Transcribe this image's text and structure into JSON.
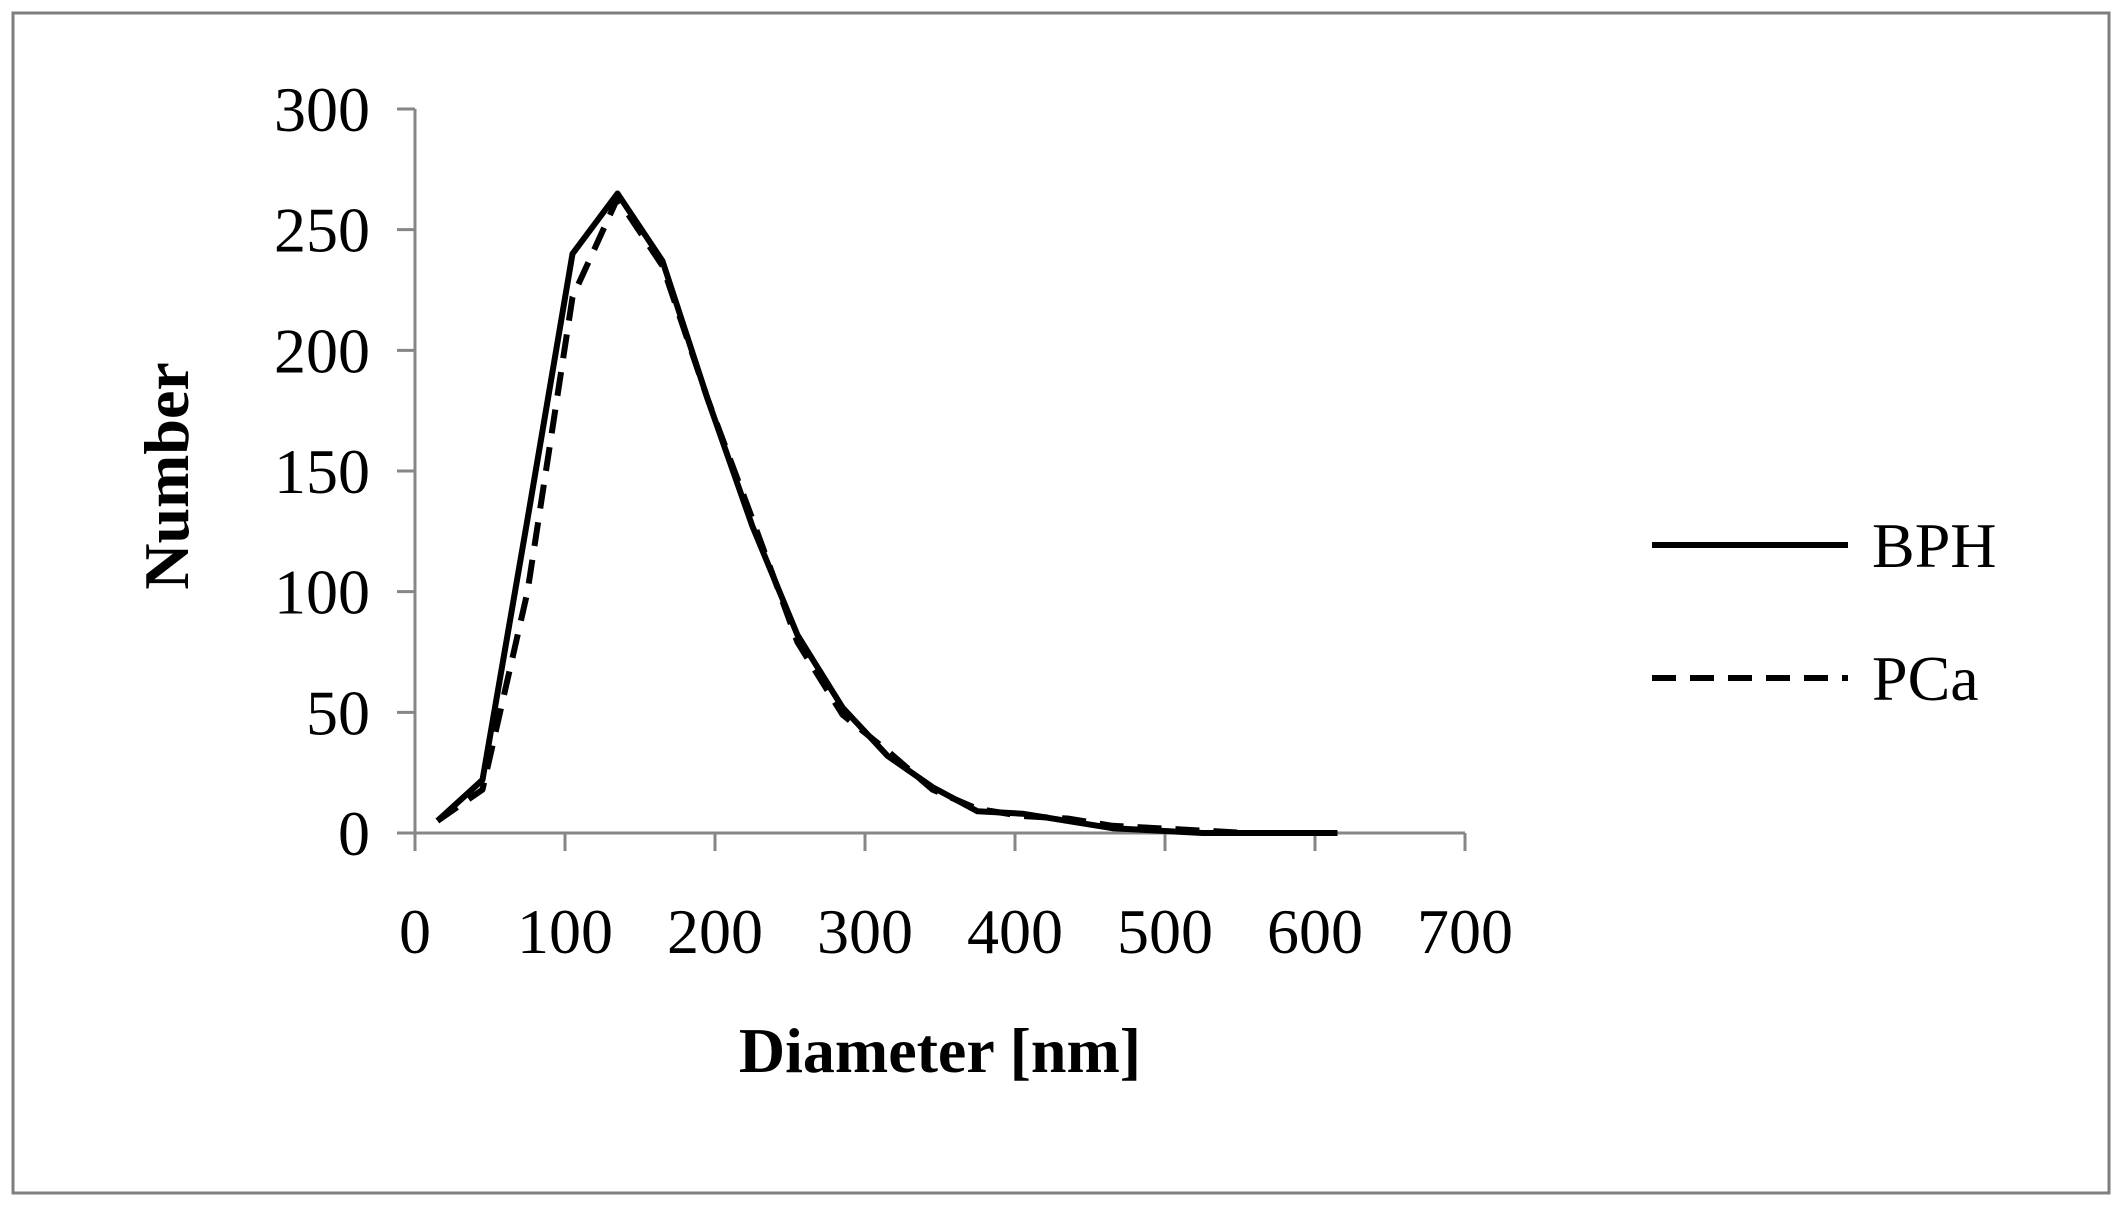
{
  "chart_data": {
    "type": "line",
    "title": "",
    "xlabel": "Diameter [nm]",
    "ylabel": "Number",
    "xlim": [
      0,
      700
    ],
    "ylim": [
      0,
      300
    ],
    "xticks": [
      0,
      100,
      200,
      300,
      400,
      500,
      600,
      700
    ],
    "yticks": [
      0,
      50,
      100,
      150,
      200,
      250,
      300
    ],
    "grid": false,
    "legend_position": "right",
    "series": [
      {
        "name": "BPH",
        "style": "solid",
        "color": "#000000",
        "x": [
          15,
          45,
          75,
          105,
          135,
          165,
          195,
          225,
          255,
          285,
          315,
          345,
          375,
          405,
          435,
          465,
          495,
          525,
          555,
          585,
          615
        ],
        "y": [
          5,
          22,
          130,
          240,
          265,
          237,
          180,
          127,
          82,
          52,
          32,
          19,
          9,
          8,
          5,
          2,
          1,
          0,
          0,
          0,
          0
        ]
      },
      {
        "name": "PCa",
        "style": "dashed",
        "color": "#000000",
        "x": [
          15,
          45,
          75,
          105,
          135,
          165,
          195,
          225,
          255,
          285,
          315,
          345,
          375,
          405,
          435,
          465,
          495,
          525,
          555,
          585,
          615
        ],
        "y": [
          5,
          18,
          100,
          222,
          263,
          235,
          180,
          130,
          79,
          49,
          34,
          18,
          10,
          7,
          6,
          3,
          2,
          1,
          0,
          0,
          0
        ]
      }
    ]
  }
}
